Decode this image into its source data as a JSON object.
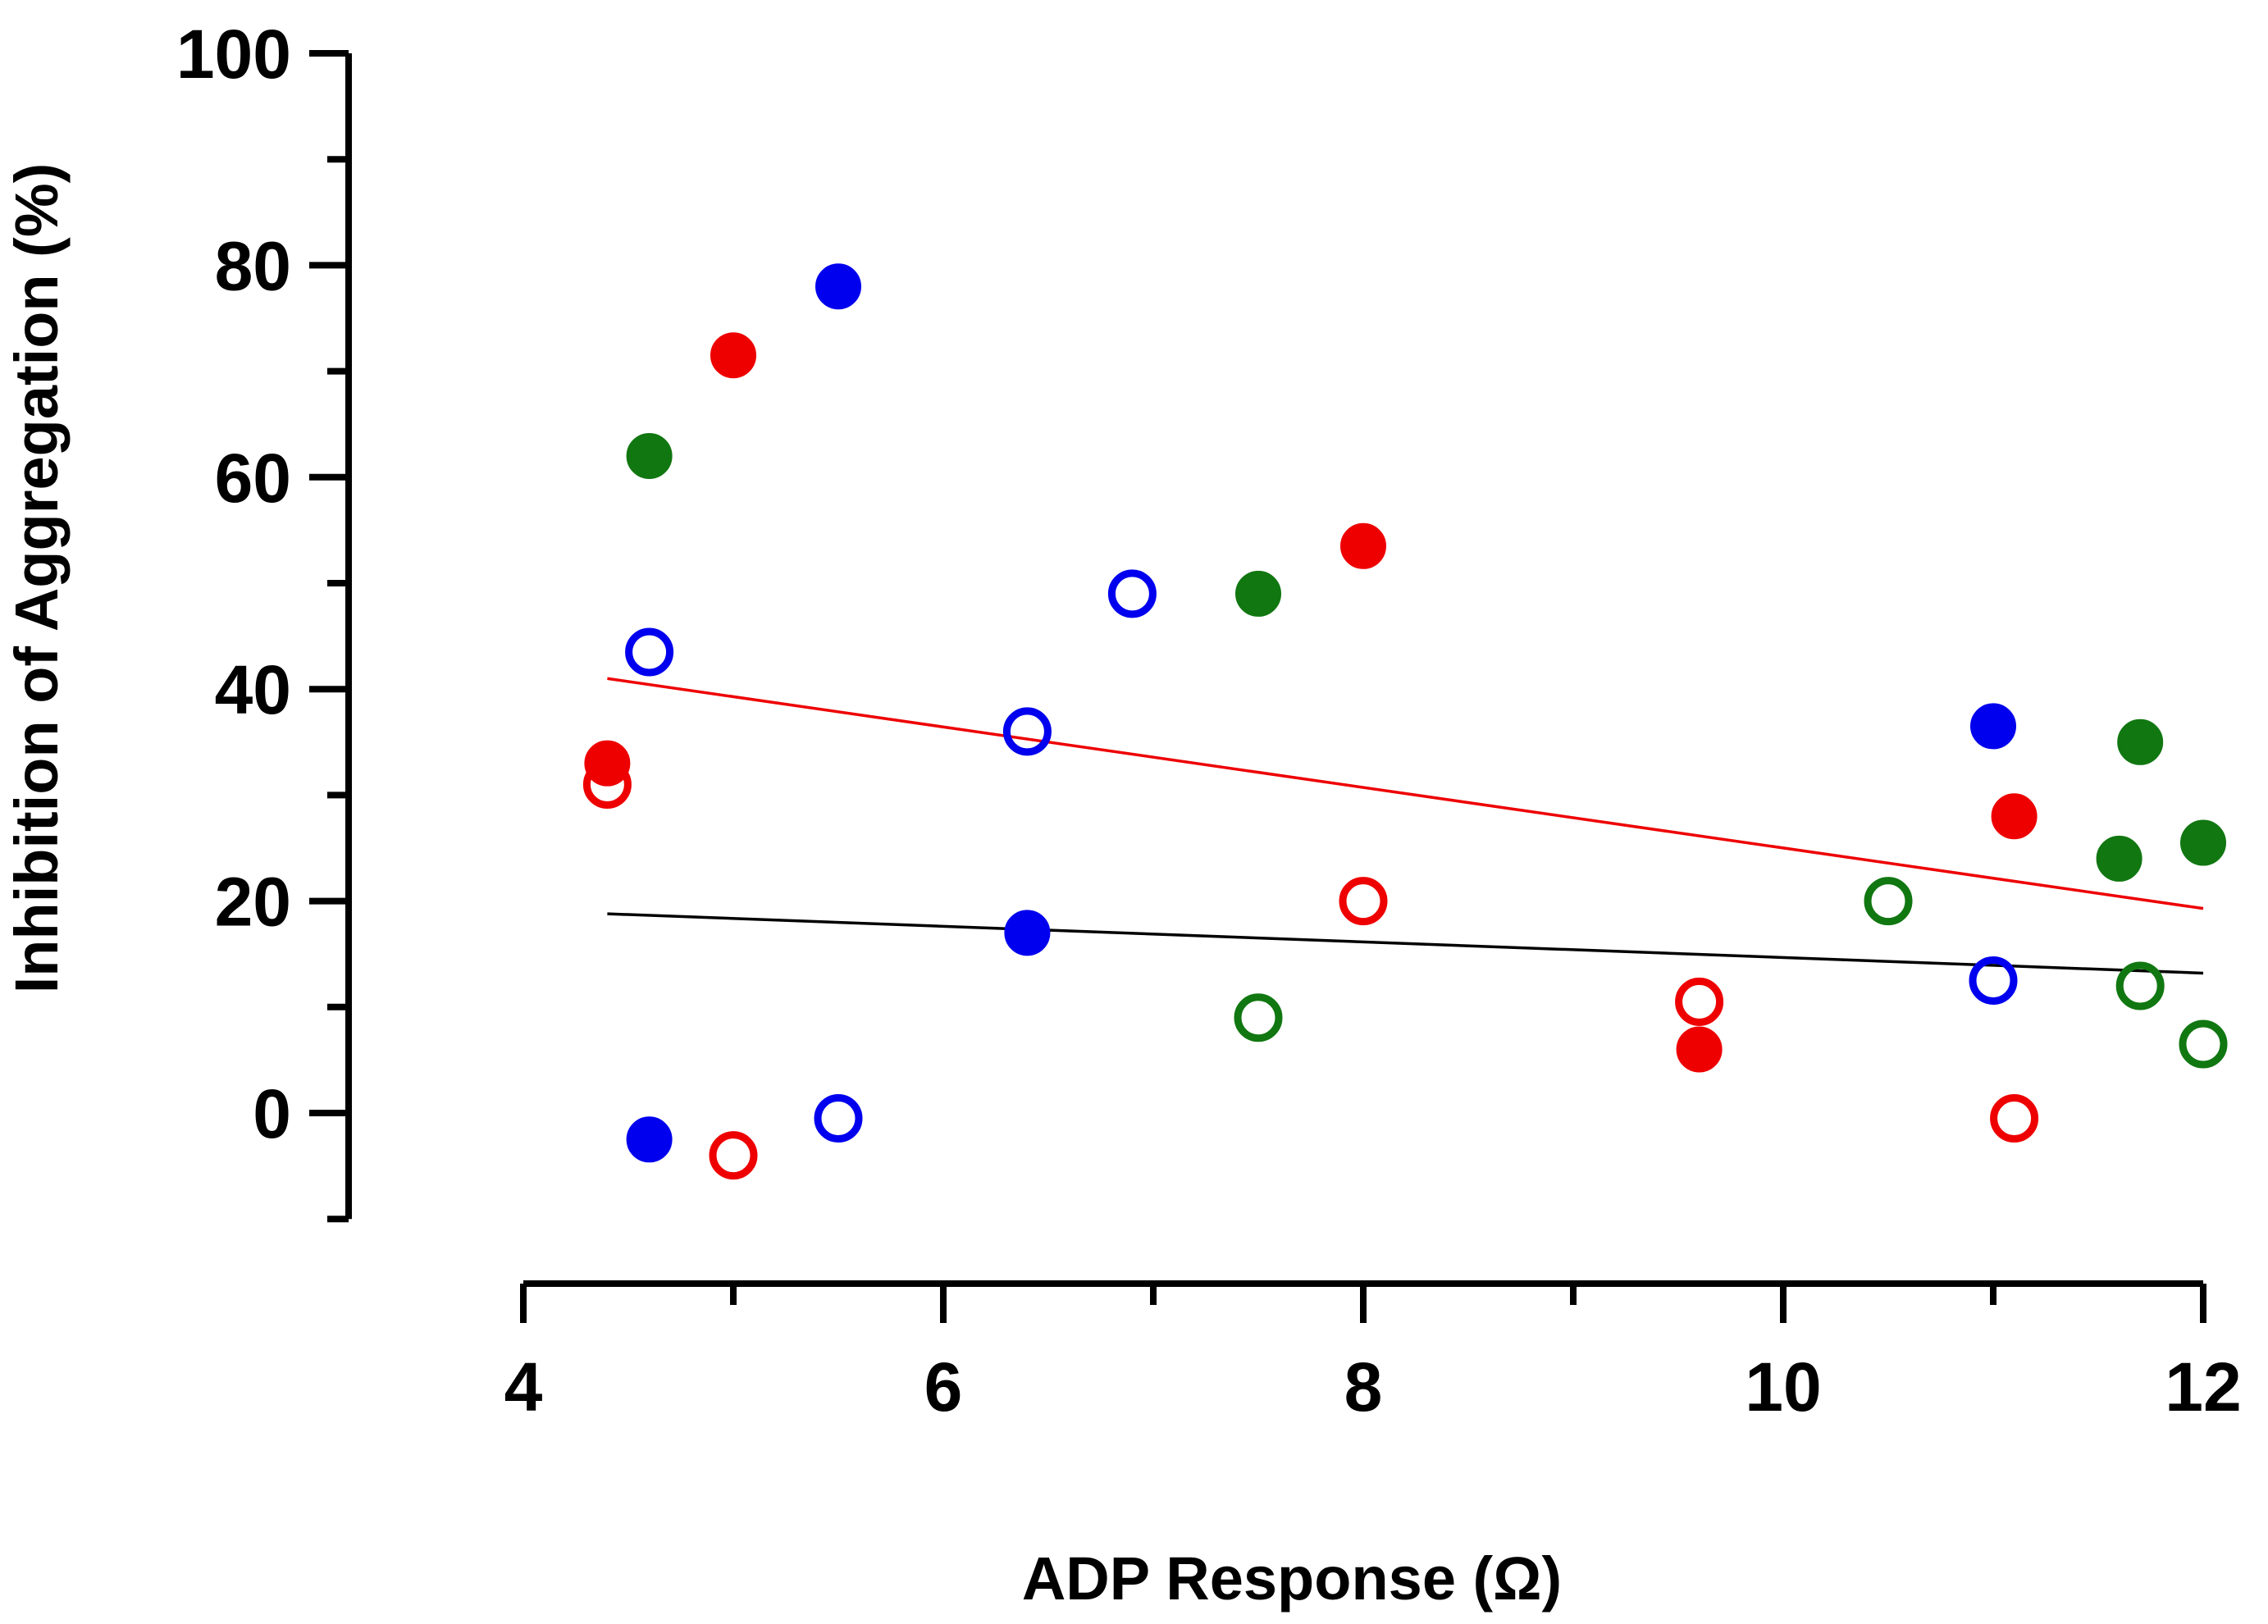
{
  "chart_data": {
    "type": "scatter",
    "title": "",
    "xlabel": "ADP Response (Ω)",
    "ylabel": "Inhibition of Aggregation (%)",
    "xlim": [
      4,
      12
    ],
    "ylim": [
      -10,
      100
    ],
    "x_ticks": [
      "4",
      "6",
      "8",
      "10",
      "12"
    ],
    "y_ticks": [
      "0",
      "20",
      "40",
      "60",
      "80",
      "100"
    ],
    "colors": {
      "blue": "#0000ee",
      "red": "#ee0000",
      "green": "#117711",
      "black": "#000000"
    },
    "series": [
      {
        "name": "blue-filled",
        "color": "#0000ee",
        "filled": true,
        "points": [
          [
            4.6,
            -2.5
          ],
          [
            5.5,
            78
          ],
          [
            6.4,
            17
          ],
          [
            11.0,
            36.5
          ]
        ]
      },
      {
        "name": "blue-open",
        "color": "#0000ee",
        "filled": false,
        "points": [
          [
            4.6,
            43.5
          ],
          [
            5.5,
            -0.5
          ],
          [
            6.4,
            36
          ],
          [
            6.9,
            49
          ],
          [
            11.0,
            12.5
          ]
        ]
      },
      {
        "name": "red-filled",
        "color": "#ee0000",
        "filled": true,
        "points": [
          [
            4.4,
            33
          ],
          [
            5.0,
            71.5
          ],
          [
            8.0,
            53.5
          ],
          [
            9.6,
            6
          ],
          [
            11.1,
            28
          ]
        ]
      },
      {
        "name": "red-open",
        "color": "#ee0000",
        "filled": false,
        "points": [
          [
            4.4,
            31
          ],
          [
            5.0,
            -4
          ],
          [
            8.0,
            20
          ],
          [
            9.6,
            10.5
          ],
          [
            11.1,
            -0.5
          ]
        ]
      },
      {
        "name": "green-filled",
        "color": "#117711",
        "filled": true,
        "points": [
          [
            4.6,
            62
          ],
          [
            7.5,
            49
          ],
          [
            11.6,
            24
          ],
          [
            11.7,
            35
          ],
          [
            12.0,
            25.5
          ]
        ]
      },
      {
        "name": "green-open",
        "color": "#117711",
        "filled": false,
        "points": [
          [
            7.5,
            9
          ],
          [
            10.5,
            20
          ],
          [
            11.7,
            12
          ],
          [
            12.0,
            6.5
          ]
        ]
      }
    ],
    "trend_lines": [
      {
        "name": "red-trend",
        "color": "#ee0000",
        "x": [
          4.4,
          12.0
        ],
        "y": [
          41,
          19.3
        ]
      },
      {
        "name": "black-trend",
        "color": "#000000",
        "x": [
          4.4,
          12.0
        ],
        "y": [
          18.8,
          13.2
        ]
      }
    ]
  }
}
